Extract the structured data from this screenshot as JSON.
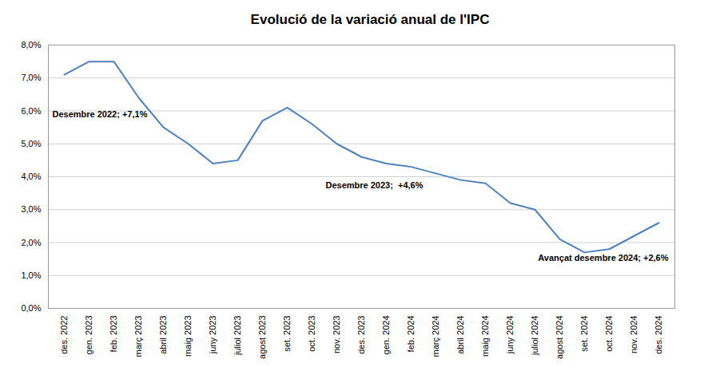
{
  "chart_data": {
    "type": "line",
    "title": "Evolució de la variació anual de l'IPC",
    "categories": [
      "des. 2022",
      "gen. 2023",
      "feb. 2023",
      "març 2023",
      "abril 2023",
      "maig 2023",
      "juny 2023",
      "juliol 2023",
      "agost 2023",
      "set. 2023",
      "oct. 2023",
      "nov. 2023",
      "des. 2023",
      "gen. 2024",
      "feb. 2024",
      "març 2024",
      "abril 2024",
      "maig 2024",
      "juny 2024",
      "juliol 2024",
      "agost 2024",
      "set. 2024",
      "oct. 2024",
      "nov. 2024",
      "des. 2024"
    ],
    "values": [
      7.1,
      7.5,
      7.5,
      6.4,
      5.5,
      5.0,
      4.4,
      4.5,
      5.7,
      6.1,
      5.6,
      5.0,
      4.6,
      4.4,
      4.3,
      4.1,
      3.9,
      3.8,
      3.2,
      3.0,
      2.1,
      1.7,
      1.8,
      2.2,
      2.6
    ],
    "color": "#4f81bd",
    "ylim": [
      0,
      8
    ],
    "yticks": [
      {
        "value": 0,
        "label": "0,0%"
      },
      {
        "value": 1,
        "label": "1,0%"
      },
      {
        "value": 2,
        "label": "2,0%"
      },
      {
        "value": 3,
        "label": "3,0%"
      },
      {
        "value": 4,
        "label": "4,0%"
      },
      {
        "value": 5,
        "label": "5,0%"
      },
      {
        "value": 6,
        "label": "6,0%"
      },
      {
        "value": 7,
        "label": "7,0%"
      },
      {
        "value": 8,
        "label": "8,0%"
      }
    ],
    "grid": true,
    "annotations": [
      {
        "text": "Desembre 2022; +7,1%",
        "x": "des. 2022"
      },
      {
        "text": "Desembre 2023;  +4,6%",
        "x": "des. 2023"
      },
      {
        "text": "Avançat desembre 2024; +2,6%",
        "x": "des. 2024"
      }
    ]
  }
}
